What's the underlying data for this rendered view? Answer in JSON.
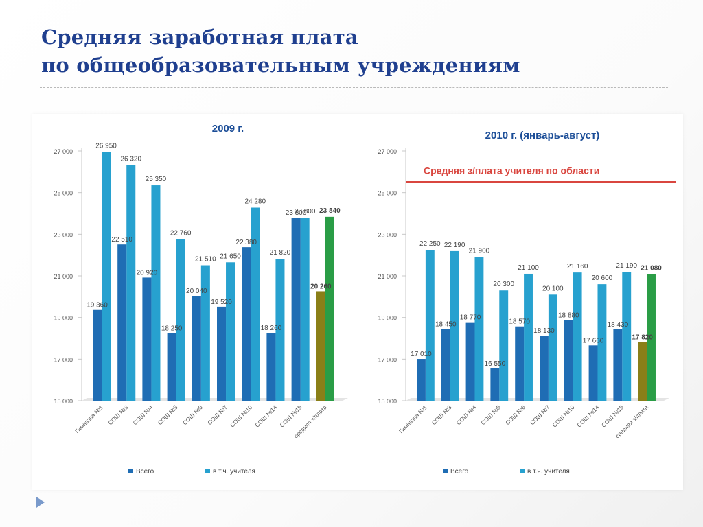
{
  "slide": {
    "title_line1": "Средняя заработная плата",
    "title_line2": "по общеобразовательным учреждениям",
    "nav_icon": "triangle-right-icon"
  },
  "colors": {
    "title": "#1f3f8f",
    "vsego": "#1f6db4",
    "teachers": "#27a1cf",
    "avg_vsego": "#8a7f18",
    "avg_teachers": "#2a9d46",
    "region_line": "#d9463f",
    "label_box": "#fff7d0"
  },
  "chart_data": [
    {
      "type": "bar",
      "title": "2009 г.",
      "categories": [
        "Гимназия №1",
        "СОШ №3",
        "СОШ №4",
        "СОШ №5",
        "СОШ №6",
        "СОШ №7",
        "СОШ №10",
        "СОШ №14",
        "СОШ №15",
        "средняя з/плата"
      ],
      "series": [
        {
          "name": "Всего",
          "values": [
            19360,
            22510,
            20920,
            18250,
            20040,
            19520,
            22380,
            18260,
            23800,
            20260
          ],
          "labels": [
            "19 360",
            "22 510",
            "20 920",
            "18 250",
            "20 040",
            "19 520",
            "22 380",
            "18 260",
            "23 800",
            "20 260"
          ]
        },
        {
          "name": "в т.ч. учителя",
          "values": [
            26950,
            26320,
            25350,
            22760,
            21510,
            21650,
            24280,
            21820,
            23800,
            23840
          ],
          "labels": [
            "26 950",
            "26 320",
            "25 350",
            "22 760",
            "21 510",
            "21 650",
            "24 280",
            "21 820",
            "23 800",
            "23 840"
          ]
        }
      ],
      "yticks": [
        "27 000",
        "25 000",
        "23 000",
        "21 000",
        "19 000",
        "17 000",
        "15 000"
      ],
      "ylim": [
        15000,
        27000
      ],
      "legend_position": "bottom",
      "grid": false
    },
    {
      "type": "bar",
      "title": "2010 г. (январь-август)",
      "categories": [
        "Гимназия №1",
        "СОШ №3",
        "СОШ №4",
        "СОШ №5",
        "СОШ №6",
        "СОШ №7",
        "СОШ №10",
        "СОШ №14",
        "СОШ №15",
        "средняя з/плата"
      ],
      "series": [
        {
          "name": "Всего",
          "values": [
            17010,
            18450,
            18770,
            16550,
            18570,
            18130,
            18880,
            17660,
            18430,
            17820
          ],
          "labels": [
            "17 010",
            "18 450",
            "18 770",
            "16 550",
            "18 570",
            "18 130",
            "18 880",
            "17 660",
            "18 430",
            "17 820"
          ]
        },
        {
          "name": "в т.ч. учителя",
          "values": [
            22250,
            22190,
            21900,
            20300,
            21100,
            20100,
            21160,
            20600,
            21190,
            21080
          ],
          "labels": [
            "22 250",
            "22 190",
            "21 900",
            "20 300",
            "21 100",
            "20 100",
            "21 160",
            "20 600",
            "21 190",
            "21 080"
          ]
        }
      ],
      "yticks": [
        "27 000",
        "25 000",
        "23 000",
        "21 000",
        "19 000",
        "17 000",
        "15 000"
      ],
      "ylim": [
        15000,
        27000
      ],
      "annotation": "Средняя з/плата учителя по области",
      "annotation_value": 25500,
      "legend_position": "bottom",
      "grid": false
    }
  ]
}
